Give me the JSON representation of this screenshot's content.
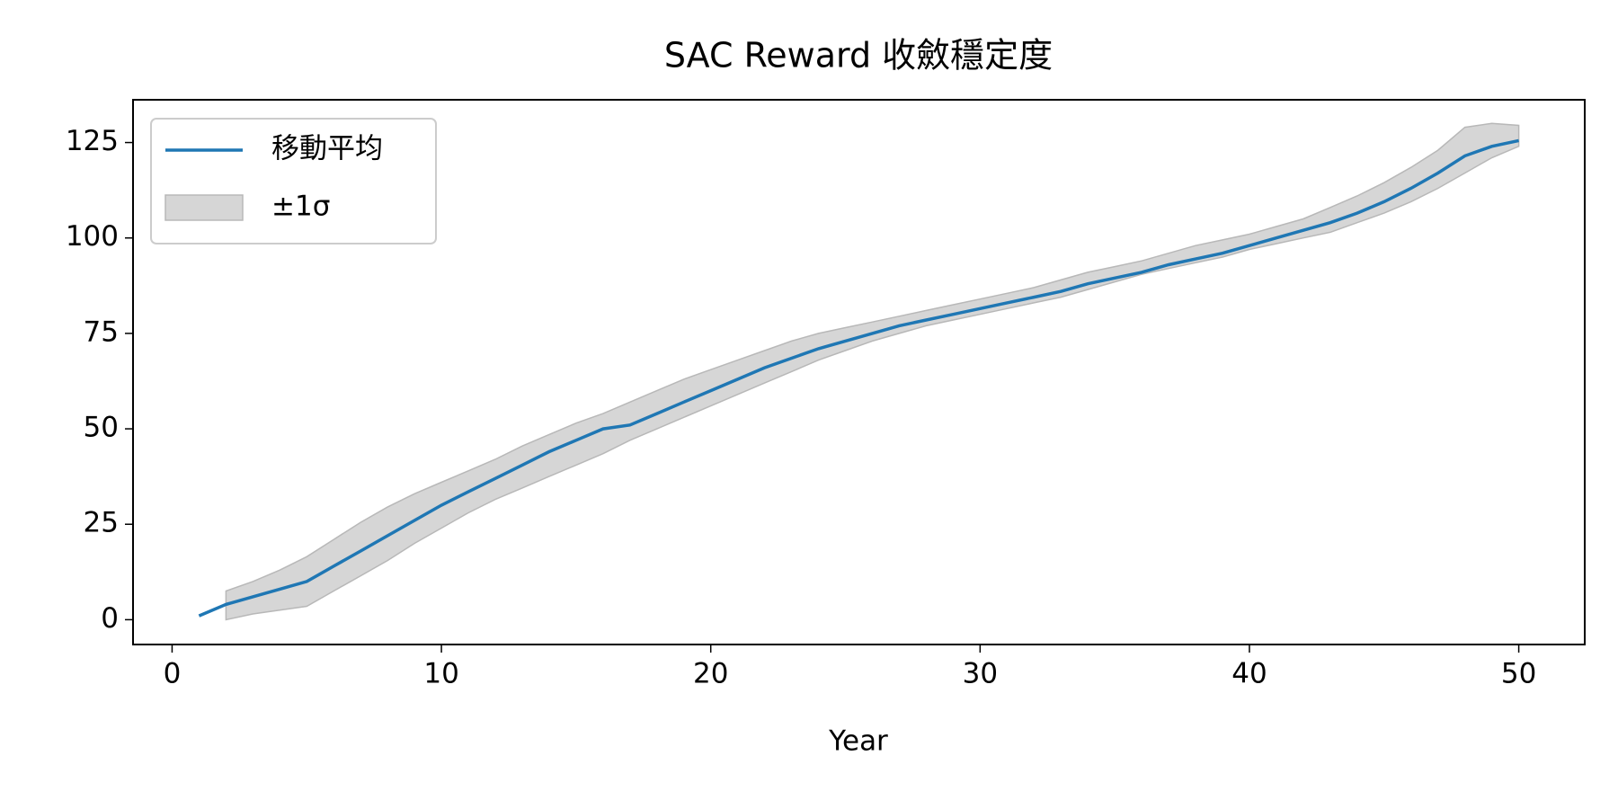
{
  "chart_data": {
    "type": "line",
    "title": "SAC Reward 收斂穩定度",
    "xlabel": "Year",
    "x": [
      1,
      2,
      3,
      4,
      5,
      6,
      7,
      8,
      9,
      10,
      11,
      12,
      13,
      14,
      15,
      16,
      17,
      18,
      19,
      20,
      21,
      22,
      23,
      24,
      25,
      26,
      27,
      28,
      29,
      30,
      31,
      32,
      33,
      34,
      35,
      36,
      37,
      38,
      39,
      40,
      41,
      42,
      43,
      44,
      45,
      46,
      47,
      48,
      49,
      50
    ],
    "series": [
      {
        "name": "移動平均",
        "color": "#1f77b4",
        "values": [
          1,
          4,
          6,
          8,
          10,
          14,
          18,
          22,
          26,
          30,
          33.5,
          37,
          40.5,
          44,
          47,
          50,
          51,
          54,
          57,
          60,
          63,
          66,
          68.5,
          71,
          73,
          75,
          77,
          78.5,
          80,
          81.5,
          83,
          84.5,
          86,
          88,
          89.5,
          91,
          93,
          94.5,
          96,
          98,
          100,
          102,
          104,
          106.5,
          109.5,
          113,
          117,
          121.5,
          124,
          125.5
        ]
      },
      {
        "name": "±1σ",
        "color": "#d6d6d6",
        "kind": "band",
        "upper": [
          null,
          7.5,
          10,
          13,
          16.5,
          21,
          25.5,
          29.5,
          33,
          36,
          39,
          42,
          45.5,
          48.5,
          51.5,
          54,
          57,
          60,
          63,
          65.5,
          68,
          70.5,
          73,
          75,
          76.5,
          78,
          79.5,
          81,
          82.5,
          84,
          85.5,
          87,
          89,
          91,
          92.5,
          94,
          96,
          98,
          99.5,
          101,
          103,
          105,
          108,
          111,
          114.5,
          118.5,
          123,
          129,
          130,
          129.5
        ],
        "lower": [
          null,
          0,
          1.5,
          2.5,
          3.5,
          7.5,
          11.5,
          15.5,
          20,
          24,
          28,
          31.5,
          34.5,
          37.5,
          40.5,
          43.5,
          47,
          50,
          53,
          56,
          59,
          62,
          65,
          68,
          70.5,
          73,
          75,
          77,
          78.5,
          80,
          81.5,
          83,
          84.5,
          86.5,
          88.5,
          90.5,
          92,
          93.5,
          95,
          97,
          98.5,
          100,
          101.5,
          104,
          106.5,
          109.5,
          113,
          117,
          121,
          124
        ]
      }
    ],
    "xlim": [
      -1.45,
      52.45
    ],
    "ylim": [
      -6.5,
      136.2
    ],
    "xticks": [
      0,
      10,
      20,
      30,
      40,
      50
    ],
    "yticks": [
      0,
      25,
      50,
      75,
      100,
      125
    ],
    "legend": "upper left"
  }
}
